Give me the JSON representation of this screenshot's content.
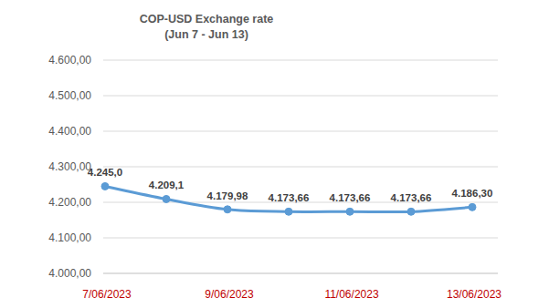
{
  "chart_data": {
    "type": "line",
    "title": "COP-USD Exchange rate",
    "subtitle": "(Jun 7 -  Jun 13)",
    "categories": [
      "7/06/2023",
      null,
      "9/06/2023",
      null,
      "11/06/2023",
      null,
      "13/06/2023"
    ],
    "values": [
      4245.0,
      4209.1,
      4179.98,
      4173.66,
      4173.66,
      4173.66,
      4186.3
    ],
    "value_labels": [
      "4.245,0",
      "4.209,1",
      "4.179,98",
      "4.173,66",
      "4.173,66",
      "4.173,66",
      "4.186,30"
    ],
    "color": "#5b9bd5",
    "marker": "circle",
    "line_style": "solid",
    "ylim": [
      4000,
      4600
    ],
    "yticks": [
      {
        "value": 4000,
        "label": "4.000,00"
      },
      {
        "value": 4100,
        "label": "4.100,00"
      },
      {
        "value": 4200,
        "label": "4.200,00"
      },
      {
        "value": 4300,
        "label": "4.300,00"
      },
      {
        "value": 4400,
        "label": "4.400,00"
      },
      {
        "value": 4500,
        "label": "4.500,00"
      },
      {
        "value": 4600,
        "label": "4.600,00"
      }
    ],
    "grid": true,
    "data_labels": true
  }
}
